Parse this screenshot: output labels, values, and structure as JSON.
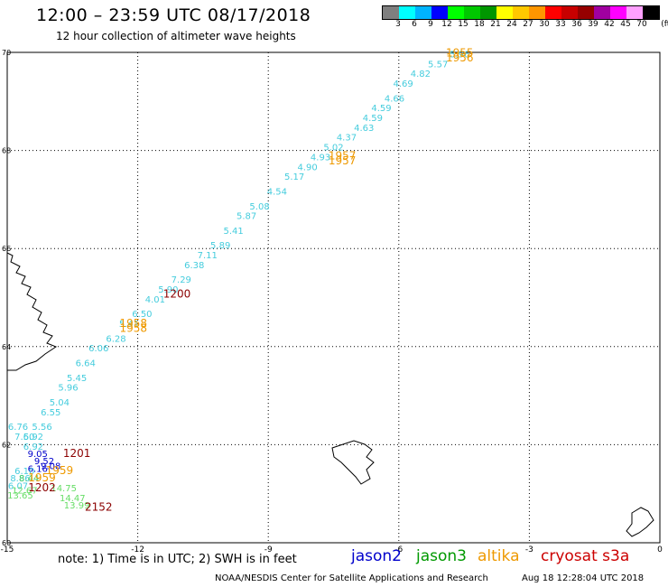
{
  "header": {
    "title": "12:00 – 23:59 UTC 08/17/2018",
    "subtitle": "12 hour collection of altimeter wave heights"
  },
  "colorbar": {
    "unit": "(ft)",
    "labels": [
      "3",
      "6",
      "9",
      "12",
      "15",
      "18",
      "21",
      "24",
      "27",
      "30",
      "33",
      "36",
      "39",
      "42",
      "45",
      "70"
    ],
    "colors": [
      "#7f7f7f",
      "#00ffff",
      "#00b4ff",
      "#0000ff",
      "#00ff00",
      "#00c800",
      "#009600",
      "#ffff00",
      "#ffc800",
      "#ff9600",
      "#ff0000",
      "#c80000",
      "#960000",
      "#a000a0",
      "#ff00ff",
      "#ffa0ff",
      "#000000"
    ]
  },
  "axes": {
    "lon_ticks": [
      "-15",
      "-12",
      "-9",
      "-6",
      "-3",
      "0"
    ],
    "lat_ticks": [
      "70",
      "68",
      "66",
      "64",
      "62",
      "60"
    ]
  },
  "map_data": {
    "lon_range": [
      -15,
      0
    ],
    "lat_range": [
      60,
      70
    ],
    "grid": true,
    "track_color": "#44ccdd",
    "track": [
      {
        "lon": -4.6,
        "lat": 69.9,
        "v": "5.96"
      },
      {
        "lon": -5.1,
        "lat": 69.7,
        "v": "5.57"
      },
      {
        "lon": -5.5,
        "lat": 69.5,
        "v": "4.82"
      },
      {
        "lon": -5.9,
        "lat": 69.3,
        "v": "4.69"
      },
      {
        "lon": -6.1,
        "lat": 69.0,
        "v": "4.66"
      },
      {
        "lon": -6.4,
        "lat": 68.8,
        "v": "4.59"
      },
      {
        "lon": -6.6,
        "lat": 68.6,
        "v": "4.59"
      },
      {
        "lon": -6.8,
        "lat": 68.4,
        "v": "4.63"
      },
      {
        "lon": -7.2,
        "lat": 68.2,
        "v": "4.37"
      },
      {
        "lon": -7.5,
        "lat": 68.0,
        "v": "5.02"
      },
      {
        "lon": -7.8,
        "lat": 67.8,
        "v": "4.93"
      },
      {
        "lon": -8.1,
        "lat": 67.6,
        "v": "4.90"
      },
      {
        "lon": -8.4,
        "lat": 67.4,
        "v": "5.17"
      },
      {
        "lon": -8.8,
        "lat": 67.1,
        "v": "4.54"
      },
      {
        "lon": -9.2,
        "lat": 66.8,
        "v": "5.08"
      },
      {
        "lon": -9.5,
        "lat": 66.6,
        "v": "5.87"
      },
      {
        "lon": -9.8,
        "lat": 66.3,
        "v": "5.41"
      },
      {
        "lon": -10.1,
        "lat": 66.0,
        "v": "5.89"
      },
      {
        "lon": -10.4,
        "lat": 65.8,
        "v": "7.11"
      },
      {
        "lon": -10.7,
        "lat": 65.6,
        "v": "6.38"
      },
      {
        "lon": -11.0,
        "lat": 65.3,
        "v": "7.29"
      },
      {
        "lon": -11.3,
        "lat": 65.1,
        "v": "5.90"
      },
      {
        "lon": -11.6,
        "lat": 64.9,
        "v": "4.01"
      },
      {
        "lon": -11.9,
        "lat": 64.6,
        "v": "6.50"
      },
      {
        "lon": -12.2,
        "lat": 64.4,
        "v": "5.41"
      },
      {
        "lon": -12.5,
        "lat": 64.1,
        "v": "6.28"
      },
      {
        "lon": -12.9,
        "lat": 63.9,
        "v": "6.06"
      },
      {
        "lon": -13.2,
        "lat": 63.6,
        "v": "6.64"
      },
      {
        "lon": -13.4,
        "lat": 63.3,
        "v": "5.45"
      },
      {
        "lon": -13.6,
        "lat": 63.1,
        "v": "5.96"
      },
      {
        "lon": -13.8,
        "lat": 62.8,
        "v": "5.04"
      },
      {
        "lon": -14.0,
        "lat": 62.6,
        "v": "6.55"
      },
      {
        "lon": -14.2,
        "lat": 62.3,
        "v": "5.56"
      },
      {
        "lon": -14.4,
        "lat": 62.1,
        "v": "5.92"
      }
    ],
    "labels": [
      {
        "lon": -14.75,
        "lat": 62.3,
        "v": "6.76",
        "c": "#44ccdd"
      },
      {
        "lon": -14.6,
        "lat": 62.1,
        "v": "7.60",
        "c": "#44ccdd"
      },
      {
        "lon": -14.4,
        "lat": 61.9,
        "v": "6.92",
        "c": "#44ccdd"
      },
      {
        "lon": -14.3,
        "lat": 61.75,
        "v": "9.05",
        "c": "#0000cc"
      },
      {
        "lon": -14.15,
        "lat": 61.6,
        "v": "9.52",
        "c": "#0000cc"
      },
      {
        "lon": -14.0,
        "lat": 61.5,
        "v": "9.08",
        "c": "#0000cc"
      },
      {
        "lon": -14.3,
        "lat": 61.45,
        "v": "6.16",
        "c": "#0000cc"
      },
      {
        "lon": -14.6,
        "lat": 61.4,
        "v": "6.10",
        "c": "#44ccdd"
      },
      {
        "lon": -14.7,
        "lat": 61.25,
        "v": "8.86",
        "c": "#44ccdd"
      },
      {
        "lon": -14.5,
        "lat": 61.25,
        "v": "8.44",
        "c": "#44cc66"
      },
      {
        "lon": -14.75,
        "lat": 61.1,
        "v": "6.07",
        "c": "#44ccdd"
      },
      {
        "lon": -14.6,
        "lat": 61.0,
        "v": "12.67",
        "c": "#66dd66"
      },
      {
        "lon": -14.7,
        "lat": 60.9,
        "v": "13.65",
        "c": "#66dd66"
      },
      {
        "lon": -13.7,
        "lat": 61.05,
        "v": "14.75",
        "c": "#66dd66"
      },
      {
        "lon": -13.5,
        "lat": 60.85,
        "v": "14.47",
        "c": "#66dd66"
      },
      {
        "lon": -13.4,
        "lat": 60.7,
        "v": "13.99",
        "c": "#66dd66"
      }
    ],
    "times": [
      {
        "lon": -4.6,
        "lat": 69.92,
        "v": "1955",
        "c": "#ee9900"
      },
      {
        "lon": -4.6,
        "lat": 69.82,
        "v": "1956",
        "c": "#ee9900"
      },
      {
        "lon": -7.3,
        "lat": 67.82,
        "v": "1957",
        "c": "#ee9900"
      },
      {
        "lon": -7.3,
        "lat": 67.72,
        "v": "1957",
        "c": "#ee9900"
      },
      {
        "lon": -11.1,
        "lat": 65.0,
        "v": "1200",
        "c": "#8b0000"
      },
      {
        "lon": -12.1,
        "lat": 64.4,
        "v": "1958",
        "c": "#ee9900"
      },
      {
        "lon": -12.1,
        "lat": 64.3,
        "v": "1958",
        "c": "#ee9900"
      },
      {
        "lon": -13.4,
        "lat": 61.75,
        "v": "1201",
        "c": "#8b0000"
      },
      {
        "lon": -13.8,
        "lat": 61.4,
        "v": "1959",
        "c": "#ee9900"
      },
      {
        "lon": -14.2,
        "lat": 61.25,
        "v": "1959",
        "c": "#ee9900"
      },
      {
        "lon": -14.2,
        "lat": 61.05,
        "v": "1202",
        "c": "#8b0000"
      },
      {
        "lon": -12.9,
        "lat": 60.65,
        "v": "2152",
        "c": "#8b0000"
      }
    ]
  },
  "footer": {
    "note": "note: 1) Time is in UTC; 2) SWH is in feet",
    "satellites": [
      {
        "name": "jason2",
        "color": "#0000cc"
      },
      {
        "name": "jason3",
        "color": "#009900"
      },
      {
        "name": "altika",
        "color": "#ee9900"
      },
      {
        "name": "cryosat s3a",
        "color": "#cc0000"
      }
    ],
    "credits": "NOAA/NESDIS Center for Satellite Applications and Research",
    "timestamp": "Aug 18 12:28:04 UTC 2018"
  }
}
